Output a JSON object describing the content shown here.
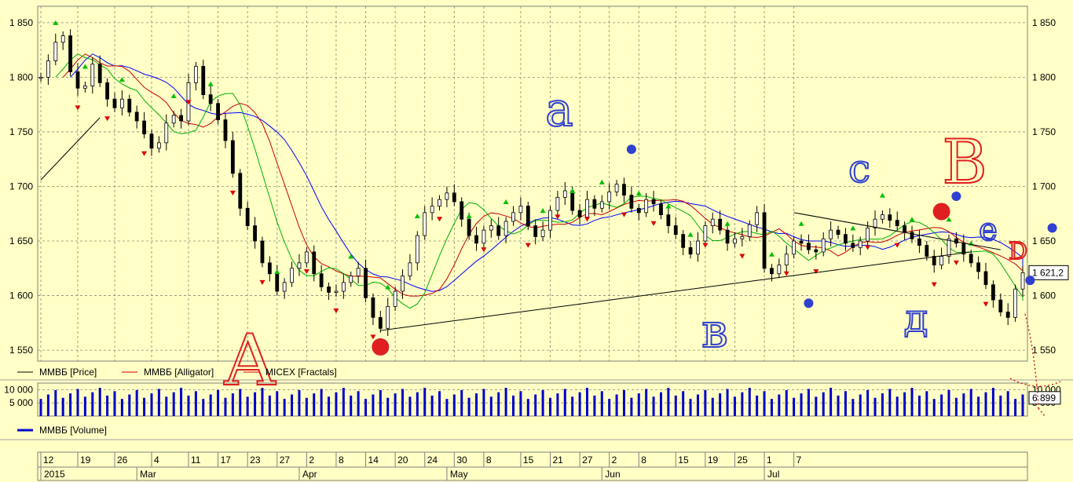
{
  "chart_data": {
    "type": "line",
    "title": "",
    "price_axis": {
      "ylim": [
        1540,
        1865
      ],
      "ticks": [
        1550,
        1600,
        1650,
        1700,
        1750,
        1800,
        1850
      ],
      "tick_labels": [
        "1 550",
        "1 600",
        "1 650",
        "1 700",
        "1 750",
        "1 800",
        "1 850"
      ]
    },
    "current_value_label": "1 621,2",
    "volume_axis": {
      "ylim": [
        0,
        12500
      ],
      "tick_labels": [
        "10 000",
        "5 000"
      ],
      "ticks": [
        10000,
        5000
      ],
      "current_value_label": "6 899"
    },
    "x_tick_labels": [
      {
        "text": "12",
        "day": 0
      },
      {
        "text": "19",
        "day": 5
      },
      {
        "text": "26",
        "day": 10
      },
      {
        "text": "4",
        "day": 15
      },
      {
        "text": "11",
        "day": 20
      },
      {
        "text": "17",
        "day": 24
      },
      {
        "text": "23",
        "day": 28
      },
      {
        "text": "27",
        "day": 32
      },
      {
        "text": "2",
        "day": 36
      },
      {
        "text": "8",
        "day": 40
      },
      {
        "text": "14",
        "day": 44
      },
      {
        "text": "20",
        "day": 48
      },
      {
        "text": "24",
        "day": 52
      },
      {
        "text": "30",
        "day": 56
      },
      {
        "text": "8",
        "day": 60
      },
      {
        "text": "15",
        "day": 65
      },
      {
        "text": "21",
        "day": 69
      },
      {
        "text": "27",
        "day": 73
      },
      {
        "text": "2",
        "day": 77
      },
      {
        "text": "8",
        "day": 81
      },
      {
        "text": "15",
        "day": 86
      },
      {
        "text": "19",
        "day": 90
      },
      {
        "text": "25",
        "day": 94
      },
      {
        "text": "1",
        "day": 98
      },
      {
        "text": "7",
        "day": 102
      }
    ],
    "month_labels": [
      {
        "text": "2015",
        "day": 0
      },
      {
        "text": "Mar",
        "day": 13
      },
      {
        "text": "Apr",
        "day": 35
      },
      {
        "text": "May",
        "day": 55
      },
      {
        "text": "Jun",
        "day": 76
      },
      {
        "text": "Jul",
        "day": 98
      }
    ],
    "close": [
      1800,
      1815,
      1832,
      1838,
      1805,
      1790,
      1792,
      1812,
      1795,
      1780,
      1772,
      1780,
      1768,
      1760,
      1748,
      1735,
      1740,
      1758,
      1765,
      1760,
      1795,
      1810,
      1784,
      1776,
      1761,
      1742,
      1712,
      1680,
      1664,
      1650,
      1630,
      1620,
      1604,
      1612,
      1625,
      1630,
      1640,
      1620,
      1608,
      1603,
      1604,
      1612,
      1618,
      1625,
      1598,
      1580,
      1570,
      1590,
      1604,
      1618,
      1630,
      1655,
      1676,
      1682,
      1688,
      1694,
      1686,
      1670,
      1655,
      1648,
      1660,
      1664,
      1655,
      1668,
      1676,
      1682,
      1664,
      1654,
      1660,
      1678,
      1690,
      1696,
      1678,
      1672,
      1688,
      1680,
      1686,
      1695,
      1702,
      1692,
      1680,
      1676,
      1688,
      1684,
      1674,
      1664,
      1656,
      1644,
      1638,
      1650,
      1664,
      1670,
      1660,
      1648,
      1652,
      1654,
      1665,
      1676,
      1625,
      1620,
      1628,
      1638,
      1650,
      1648,
      1642,
      1640,
      1652,
      1660,
      1656,
      1648,
      1644,
      1650,
      1662,
      1670,
      1674,
      1669,
      1664,
      1658,
      1652,
      1646,
      1636,
      1628,
      1636,
      1652,
      1648,
      1638,
      1630,
      1622,
      1610,
      1596,
      1585,
      1580,
      1606,
      1621
    ],
    "series": [
      {
        "name": "ММВБ [Price]",
        "color": "#000000"
      },
      {
        "name": "ММВБ [Alligator]",
        "color": "#cc0000"
      },
      {
        "name": "MICEX [Fractals]",
        "color": "#000000"
      },
      {
        "name": "ММВБ [Volume]",
        "color": "#0000cc"
      }
    ],
    "alligator_colors": {
      "jaw": "#0000ff",
      "teeth": "#cc0000",
      "lips": "#00b000"
    },
    "fractal_colors": {
      "up": "#00c000",
      "down": "#e00000"
    },
    "up_fractals": [
      2,
      6,
      11,
      18,
      23,
      32,
      42,
      47,
      51,
      58,
      63,
      68,
      72,
      76,
      81,
      85,
      88,
      93,
      99,
      103,
      110,
      114,
      118,
      123,
      126
    ],
    "down_fractals": [
      5,
      9,
      14,
      20,
      26,
      30,
      36,
      40,
      45,
      54,
      60,
      66,
      70,
      74,
      79,
      83,
      90,
      95,
      101,
      105,
      112,
      116,
      121,
      124,
      128
    ],
    "trendlines": [
      {
        "from": {
          "day": 0,
          "value": 1706
        },
        "to": {
          "day": 8,
          "value": 1763
        }
      },
      {
        "from": {
          "day": 46,
          "value": 1568
        },
        "to": {
          "day": 126,
          "value": 1640
        }
      },
      {
        "from": {
          "day": 102,
          "value": 1676
        },
        "to": {
          "day": 130,
          "value": 1642
        }
      }
    ],
    "annotations": [
      {
        "text": "A",
        "color": "#e02020"
      },
      {
        "text": "a",
        "color": "#3040d0"
      },
      {
        "text": "B",
        "color": "#e02020"
      },
      {
        "text": "c",
        "color": "#3040d0"
      },
      {
        "text": "в",
        "color": "#3040d0"
      },
      {
        "text": "д",
        "color": "#3040d0"
      },
      {
        "text": "e",
        "color": "#3040d0"
      },
      {
        "text": "D",
        "color": "#e02020"
      }
    ],
    "markers": [
      {
        "day": 46,
        "value": 1553,
        "color": "#e02020",
        "size": "big"
      },
      {
        "day": 122,
        "value": 1677,
        "color": "#e02020",
        "size": "big"
      },
      {
        "day": 80,
        "value": 1734,
        "color": "#3040d0",
        "size": "small"
      },
      {
        "day": 104,
        "value": 1593,
        "color": "#3040d0",
        "size": "small"
      },
      {
        "day": 124,
        "value": 1691,
        "color": "#3040d0",
        "size": "small"
      },
      {
        "day": 134,
        "value": 1614,
        "color": "#3040d0",
        "size": "small"
      },
      {
        "day": 137,
        "value": 1662,
        "color": "#3040d0",
        "size": "small"
      }
    ],
    "grid": true
  },
  "legend": {
    "price": "ММВБ [Price]",
    "alligator": "ММВБ [Alligator]",
    "fractals": "MICEX [Fractals]",
    "volume": "ММВБ [Volume]"
  }
}
